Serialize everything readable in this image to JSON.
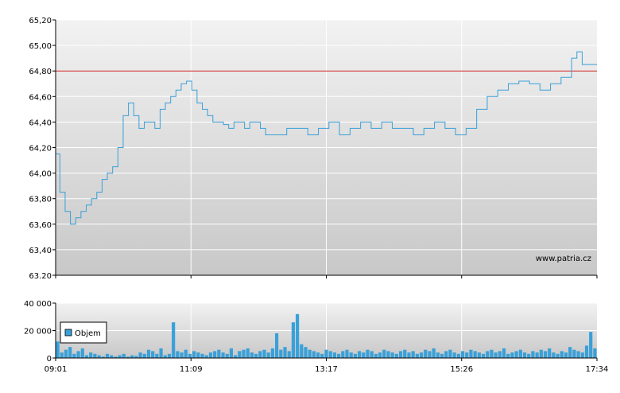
{
  "watermark": "www.patria.cz",
  "colors": {
    "price_line": "#3aa0d8",
    "reference_line": "#cc2222",
    "volume_bar": "#3aa0d8",
    "grid": "#ffffff",
    "panel_top": "#f2f2f2",
    "panel_bottom": "#c8c8c8"
  },
  "chart_data": [
    {
      "type": "line",
      "name": "price",
      "ylim": [
        63.2,
        65.2
      ],
      "yticks": [
        "65,20",
        "65,00",
        "64,80",
        "64,60",
        "64,40",
        "64,20",
        "64,00",
        "63,80",
        "63,60",
        "63,40",
        "63.20"
      ],
      "ytick_values": [
        65.2,
        65.0,
        64.8,
        64.6,
        64.4,
        64.2,
        64.0,
        63.8,
        63.6,
        63.4,
        63.2
      ],
      "x_range": [
        "09:01",
        "17:34"
      ],
      "reference_line": 64.8,
      "grid": true,
      "x": [
        "09:01",
        "09:05",
        "09:10",
        "09:15",
        "09:20",
        "09:25",
        "09:30",
        "09:35",
        "09:40",
        "09:45",
        "09:50",
        "09:55",
        "10:00",
        "10:05",
        "10:10",
        "10:15",
        "10:20",
        "10:25",
        "10:30",
        "10:35",
        "10:40",
        "10:45",
        "10:50",
        "10:55",
        "11:00",
        "11:05",
        "11:10",
        "11:15",
        "11:20",
        "11:25",
        "11:30",
        "11:35",
        "11:40",
        "11:45",
        "11:50",
        "11:55",
        "12:00",
        "12:05",
        "12:10",
        "12:15",
        "12:20",
        "12:30",
        "12:40",
        "12:50",
        "13:00",
        "13:10",
        "13:20",
        "13:30",
        "13:40",
        "13:50",
        "14:00",
        "14:10",
        "14:20",
        "14:30",
        "14:40",
        "14:50",
        "15:00",
        "15:10",
        "15:20",
        "15:30",
        "15:40",
        "15:50",
        "16:00",
        "16:10",
        "16:20",
        "16:30",
        "16:40",
        "16:50",
        "17:00",
        "17:10",
        "17:15",
        "17:20",
        "17:25",
        "17:30",
        "17:34"
      ],
      "values": [
        64.15,
        63.85,
        63.7,
        63.6,
        63.65,
        63.7,
        63.75,
        63.8,
        63.85,
        63.95,
        64.0,
        64.05,
        64.2,
        64.45,
        64.55,
        64.45,
        64.35,
        64.4,
        64.4,
        64.35,
        64.5,
        64.55,
        64.6,
        64.65,
        64.7,
        64.72,
        64.65,
        64.55,
        64.5,
        64.45,
        64.4,
        64.4,
        64.38,
        64.35,
        64.4,
        64.4,
        64.35,
        64.4,
        64.4,
        64.35,
        64.3,
        64.3,
        64.35,
        64.35,
        64.3,
        64.35,
        64.4,
        64.3,
        64.35,
        64.4,
        64.35,
        64.4,
        64.35,
        64.35,
        64.3,
        64.35,
        64.4,
        64.35,
        64.3,
        64.35,
        64.5,
        64.6,
        64.65,
        64.7,
        64.72,
        64.7,
        64.65,
        64.7,
        64.75,
        64.9,
        64.95,
        64.85,
        64.85,
        64.85,
        64.85
      ]
    },
    {
      "type": "bar",
      "name": "volume",
      "legend": "Objem",
      "ylim": [
        0,
        40000
      ],
      "yticks": [
        "40 000",
        "20 000",
        "0"
      ],
      "ytick_values": [
        40000,
        20000,
        0
      ],
      "x_ticks": [
        "09:01",
        "11:09",
        "13:17",
        "15:26",
        "17:34"
      ],
      "values": [
        12000,
        4000,
        6000,
        8000,
        3000,
        5000,
        7000,
        2000,
        4000,
        3000,
        2000,
        1000,
        3000,
        2000,
        1000,
        2000,
        3000,
        1000,
        2000,
        1500,
        4000,
        3000,
        6000,
        5000,
        3000,
        7000,
        2000,
        3000,
        26000,
        5000,
        4000,
        6000,
        3000,
        5000,
        4000,
        3000,
        2000,
        4000,
        5000,
        6000,
        4000,
        3000,
        7000,
        2000,
        5000,
        6000,
        7000,
        4000,
        3000,
        5000,
        6000,
        4000,
        7000,
        18000,
        6000,
        8000,
        5000,
        26000,
        32000,
        10000,
        8000,
        6000,
        5000,
        4000,
        3000,
        6000,
        5000,
        4000,
        3000,
        5000,
        6000,
        4000,
        3000,
        5000,
        4000,
        6000,
        5000,
        3000,
        4000,
        6000,
        5000,
        4000,
        3000,
        5000,
        6000,
        4000,
        5000,
        3000,
        4000,
        6000,
        5000,
        7000,
        4000,
        3000,
        5000,
        6000,
        4000,
        3000,
        5000,
        4000,
        6000,
        5000,
        4000,
        3000,
        5000,
        6000,
        4000,
        5000,
        7000,
        3000,
        4000,
        5000,
        6000,
        4000,
        3000,
        5000,
        4000,
        6000,
        5000,
        7000,
        4000,
        3000,
        5000,
        4000,
        8000,
        6000,
        5000,
        4000,
        9000,
        19000,
        7000
      ]
    }
  ]
}
